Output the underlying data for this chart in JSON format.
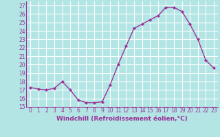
{
  "x": [
    0,
    1,
    2,
    3,
    4,
    5,
    6,
    7,
    8,
    9,
    10,
    11,
    12,
    13,
    14,
    15,
    16,
    17,
    18,
    19,
    20,
    21,
    22,
    23
  ],
  "y": [
    17.3,
    17.1,
    17.0,
    17.2,
    18.0,
    17.0,
    15.8,
    15.5,
    15.5,
    15.6,
    17.6,
    20.0,
    22.2,
    24.3,
    24.8,
    25.3,
    25.8,
    26.8,
    26.8,
    26.3,
    24.8,
    23.0,
    20.5,
    19.6
  ],
  "line_color": "#993399",
  "marker": "D",
  "marker_size": 2,
  "bg_color": "#b3e5e5",
  "grid_color": "#ffffff",
  "xlabel": "Windchill (Refroidissement éolien,°C)",
  "xlabel_color": "#993399",
  "tick_color": "#993399",
  "xlim": [
    -0.5,
    23.5
  ],
  "ylim": [
    15,
    27.5
  ],
  "yticks": [
    15,
    16,
    17,
    18,
    19,
    20,
    21,
    22,
    23,
    24,
    25,
    26,
    27
  ],
  "xticks": [
    0,
    1,
    2,
    3,
    4,
    5,
    6,
    7,
    8,
    9,
    10,
    11,
    12,
    13,
    14,
    15,
    16,
    17,
    18,
    19,
    20,
    21,
    22,
    23
  ],
  "line_width": 1.0,
  "tick_fontsize": 5.5,
  "xlabel_fontsize": 6.5
}
